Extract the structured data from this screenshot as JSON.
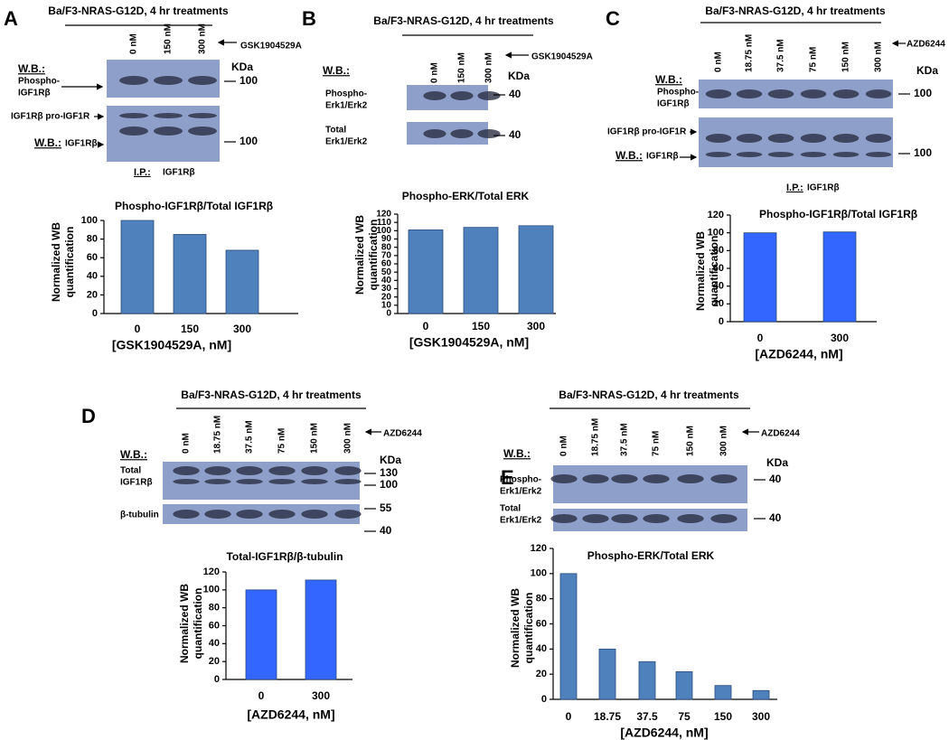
{
  "panels": [
    {
      "letter": "A",
      "header": "Ba/F3-NRAS-G12D, 4 hr treatments",
      "lanes": [
        "0 nM",
        "150 nM",
        "300 nM"
      ],
      "treatment": "GSK1904529A",
      "kda": "KDa",
      "blots": [
        {
          "wb": "W.B.:",
          "label": [
            "Phospho-",
            "IGF1Rβ"
          ],
          "markers": [
            "100"
          ]
        },
        {
          "pro_label": "IGF1Rβ pro-IGF1R",
          "wb": "W.B.:",
          "label": [
            "IGF1Rβ"
          ],
          "markers": [
            "100"
          ]
        }
      ],
      "ip": {
        "label": "I.P.:",
        "target": "IGF1Rβ"
      }
    },
    {
      "letter": "B",
      "header": "Ba/F3-NRAS-G12D, 4 hr treatments",
      "lanes": [
        "0 nM",
        "150 nM",
        "300 nM"
      ],
      "treatment": "GSK1904529A",
      "kda": "KDa",
      "wb": "W.B.:",
      "blots": [
        {
          "label": [
            "Phospho-",
            "Erk1/Erk2"
          ],
          "markers": [
            "40"
          ]
        },
        {
          "label": [
            "Total",
            "Erk1/Erk2"
          ],
          "markers": [
            "40"
          ]
        }
      ]
    },
    {
      "letter": "C",
      "header": "Ba/F3-NRAS-G12D, 4 hr treatments",
      "lanes": [
        "0 nM",
        "18.75 nM",
        "37.5 nM",
        "75 nM",
        "150 nM",
        "300 nM"
      ],
      "treatment": "AZD6244",
      "kda": "KDa",
      "blots": [
        {
          "wb": "W.B.:",
          "label": [
            "Phospho-",
            "IGF1Rβ"
          ],
          "markers": [
            "100"
          ]
        },
        {
          "pro_label": "IGF1Rβ pro-IGF1R",
          "wb": "W.B.:",
          "label": [
            "IGF1Rβ"
          ],
          "markers": [
            "100"
          ]
        }
      ],
      "ip": {
        "label": "I.P.:",
        "target": "IGF1Rβ"
      }
    },
    {
      "letter": "D",
      "header": "Ba/F3-NRAS-G12D, 4 hr treatments",
      "lanes": [
        "0 nM",
        "18.75 nM",
        "37.5 nM",
        "75 nM",
        "150 nM",
        "300 nM"
      ],
      "treatment": "AZD6244",
      "kda": "KDa",
      "wb": "W.B.:",
      "blots": [
        {
          "label": [
            "Total",
            "IGF1Rβ"
          ],
          "markers": [
            "130",
            "100"
          ]
        },
        {
          "label": [
            "β-tubulin"
          ],
          "markers": [
            "55",
            "40"
          ]
        }
      ]
    },
    {
      "letter": "E",
      "header": "Ba/F3-NRAS-G12D, 4 hr treatments",
      "lanes": [
        "0 nM",
        "18.75 nM",
        "37.5 nM",
        "75 nM",
        "150 nM",
        "300 nM"
      ],
      "treatment": "AZD6244",
      "kda": "KDa",
      "wb": "W.B.:",
      "blots": [
        {
          "label": [
            "Phospho-",
            "Erk1/Erk2"
          ],
          "markers": [
            "40"
          ]
        },
        {
          "label": [
            "Total",
            "Erk1/Erk2"
          ],
          "markers": [
            "40"
          ]
        }
      ]
    }
  ],
  "chart_data": [
    {
      "type": "bar",
      "title": "Phospho-IGF1Rβ/Total  IGF1Rβ",
      "y_label": [
        "Normalized WB",
        "quantification"
      ],
      "x_label": "[GSK1904529A, nM]",
      "categories": [
        "0",
        "150",
        "300"
      ],
      "values": [
        100,
        85,
        68
      ],
      "color": "#4f81bd",
      "ylim": [
        0,
        100
      ],
      "yticks": [
        0,
        20,
        40,
        60,
        80,
        100
      ]
    },
    {
      "type": "bar",
      "title": "Phospho-ERK/Total ERK",
      "y_label": [
        "Normalized WB",
        "quantification"
      ],
      "x_label": "[GSK1904529A, nM]",
      "categories": [
        "0",
        "150",
        "300"
      ],
      "values": [
        101,
        104,
        106
      ],
      "color": "#4f81bd",
      "ylim": [
        0,
        120
      ],
      "yticks": [
        0,
        10,
        20,
        30,
        40,
        50,
        60,
        70,
        80,
        90,
        100,
        110,
        120
      ]
    },
    {
      "type": "bar",
      "title": "Phospho-IGF1Rβ/Total  IGF1Rβ",
      "y_label": [
        "Normalized WB",
        "quantification"
      ],
      "x_label": "[AZD6244, nM]",
      "categories": [
        "0",
        "300"
      ],
      "values": [
        100,
        101
      ],
      "color": "#3366ff",
      "ylim": [
        0,
        120
      ],
      "yticks": [
        0,
        20,
        40,
        60,
        80,
        100,
        120
      ]
    },
    {
      "type": "bar",
      "title": "Total-IGF1Rβ/β-tubulin",
      "y_label": [
        "Normalized WB",
        "quantification"
      ],
      "x_label": "[AZD6244, nM]",
      "categories": [
        "0",
        "300"
      ],
      "values": [
        100,
        111
      ],
      "color": "#3366ff",
      "ylim": [
        0,
        120
      ],
      "yticks": [
        0,
        20,
        40,
        60,
        80,
        100,
        120
      ]
    },
    {
      "type": "bar",
      "title": "Phospho-ERK/Total ERK",
      "y_label": [
        "Normalized WB",
        "quantification"
      ],
      "x_label": "[AZD6244, nM]",
      "categories": [
        "0",
        "18.75",
        "37.5",
        "75",
        "150",
        "300"
      ],
      "values": [
        100,
        40,
        30,
        22,
        11,
        7
      ],
      "color": "#4f81bd",
      "ylim": [
        0,
        120
      ],
      "yticks": [
        0,
        20,
        40,
        60,
        80,
        100,
        120
      ]
    }
  ]
}
